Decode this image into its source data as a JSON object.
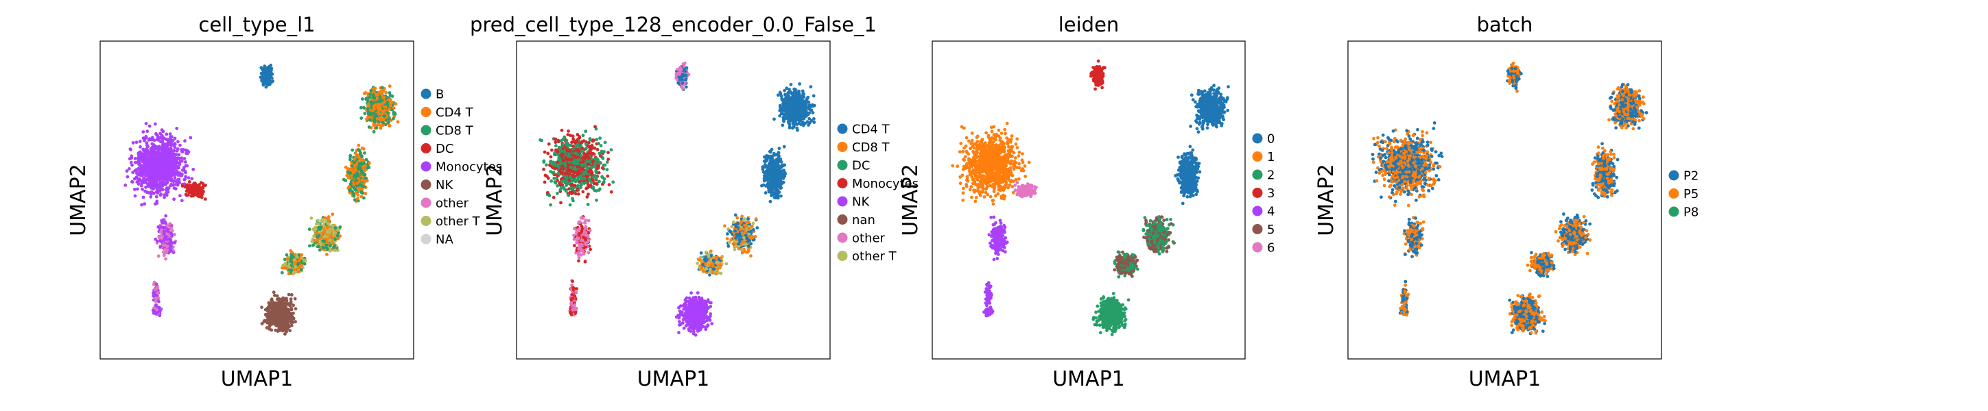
{
  "chart_data": [
    {
      "type": "scatter",
      "title": "cell_type_l1",
      "xlabel": "UMAP1",
      "ylabel": "UMAP2",
      "grid": false,
      "legend_placement": "right",
      "legend": [
        {
          "label": "B",
          "color": "#1f77b4"
        },
        {
          "label": "CD4 T",
          "color": "#ff7f0e"
        },
        {
          "label": "CD8 T",
          "color": "#279e68"
        },
        {
          "label": "DC",
          "color": "#d62728"
        },
        {
          "label": "Monocytes",
          "color": "#aa40fc"
        },
        {
          "label": "NK",
          "color": "#8c564b"
        },
        {
          "label": "other",
          "color": "#e377c2"
        },
        {
          "label": "other T",
          "color": "#b5bd61"
        },
        {
          "label": "NA",
          "color": "#d3d3d3"
        }
      ],
      "clusters": [
        {
          "region": "top-island",
          "colors": [
            "#1f77b4"
          ]
        },
        {
          "region": "left-blob",
          "colors": [
            "#aa40fc"
          ]
        },
        {
          "region": "left-notch",
          "colors": [
            "#d62728"
          ]
        },
        {
          "region": "left-tail",
          "colors": [
            "#aa40fc",
            "#e377c2"
          ]
        },
        {
          "region": "right-top",
          "colors": [
            "#279e68",
            "#ff7f0e"
          ]
        },
        {
          "region": "right-middle",
          "colors": [
            "#ff7f0e",
            "#279e68",
            "#b5bd61"
          ]
        },
        {
          "region": "right-bottom",
          "colors": [
            "#8c564b"
          ]
        }
      ]
    },
    {
      "type": "scatter",
      "title": "pred_cell_type_128_encoder_0.0_False_1",
      "xlabel": "UMAP1",
      "ylabel": "UMAP2",
      "grid": false,
      "legend_placement": "right",
      "legend": [
        {
          "label": "CD4 T",
          "color": "#1f77b4"
        },
        {
          "label": "CD8 T",
          "color": "#ff7f0e"
        },
        {
          "label": "DC",
          "color": "#279e68"
        },
        {
          "label": "Monocytes",
          "color": "#d62728"
        },
        {
          "label": "NK",
          "color": "#aa40fc"
        },
        {
          "label": "nan",
          "color": "#8c564b"
        },
        {
          "label": "other",
          "color": "#e377c2"
        },
        {
          "label": "other T",
          "color": "#b5bd61"
        }
      ],
      "clusters": [
        {
          "region": "top-island",
          "colors": [
            "#e377c2",
            "#1f77b4"
          ]
        },
        {
          "region": "left-blob",
          "colors": [
            "#d62728",
            "#279e68"
          ]
        },
        {
          "region": "left-tail",
          "colors": [
            "#d62728",
            "#e377c2"
          ]
        },
        {
          "region": "right-top",
          "colors": [
            "#1f77b4"
          ]
        },
        {
          "region": "right-middle",
          "colors": [
            "#ff7f0e",
            "#b5bd61",
            "#1f77b4"
          ]
        },
        {
          "region": "right-bottom",
          "colors": [
            "#aa40fc"
          ]
        }
      ]
    },
    {
      "type": "scatter",
      "title": "leiden",
      "xlabel": "UMAP1",
      "ylabel": "UMAP2",
      "grid": false,
      "legend_placement": "right",
      "legend": [
        {
          "label": "0",
          "color": "#1f77b4"
        },
        {
          "label": "1",
          "color": "#ff7f0e"
        },
        {
          "label": "2",
          "color": "#279e68"
        },
        {
          "label": "3",
          "color": "#d62728"
        },
        {
          "label": "4",
          "color": "#aa40fc"
        },
        {
          "label": "5",
          "color": "#8c564b"
        },
        {
          "label": "6",
          "color": "#e377c2"
        }
      ],
      "clusters": [
        {
          "region": "top-island",
          "colors": [
            "#d62728"
          ]
        },
        {
          "region": "left-blob",
          "colors": [
            "#ff7f0e"
          ]
        },
        {
          "region": "left-notch",
          "colors": [
            "#e377c2"
          ]
        },
        {
          "region": "left-tail",
          "colors": [
            "#aa40fc"
          ]
        },
        {
          "region": "right-top",
          "colors": [
            "#1f77b4"
          ]
        },
        {
          "region": "right-middle",
          "colors": [
            "#279e68",
            "#8c564b"
          ]
        },
        {
          "region": "right-bottom",
          "colors": [
            "#279e68"
          ]
        }
      ]
    },
    {
      "type": "scatter",
      "title": "batch",
      "xlabel": "UMAP1",
      "ylabel": "UMAP2",
      "grid": false,
      "legend_placement": "right",
      "legend": [
        {
          "label": "P2",
          "color": "#1f77b4"
        },
        {
          "label": "P5",
          "color": "#ff7f0e"
        },
        {
          "label": "P8",
          "color": "#279e68"
        }
      ],
      "clusters": [
        {
          "region": "top-island",
          "colors": [
            "#1f77b4",
            "#ff7f0e"
          ]
        },
        {
          "region": "left-blob",
          "colors": [
            "#1f77b4",
            "#ff7f0e"
          ]
        },
        {
          "region": "left-tail",
          "colors": [
            "#1f77b4",
            "#ff7f0e"
          ]
        },
        {
          "region": "right-top",
          "colors": [
            "#1f77b4",
            "#ff7f0e"
          ]
        },
        {
          "region": "right-middle",
          "colors": [
            "#1f77b4",
            "#ff7f0e"
          ]
        },
        {
          "region": "right-bottom",
          "colors": [
            "#1f77b4",
            "#ff7f0e"
          ]
        }
      ]
    }
  ]
}
